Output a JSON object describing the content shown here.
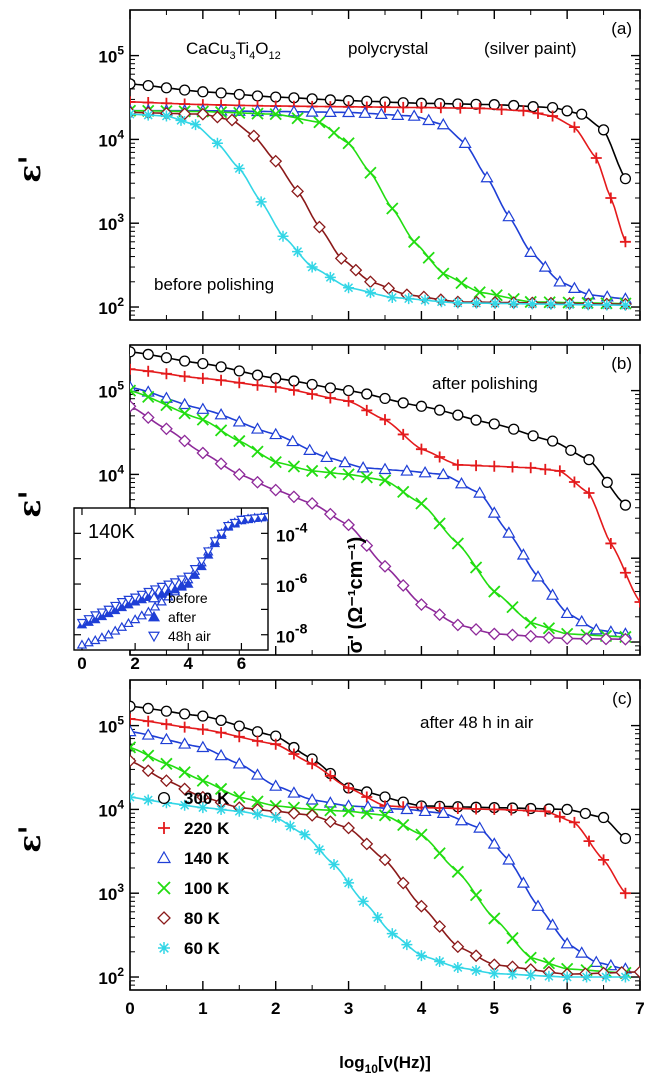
{
  "chart_data": [
    {
      "type": "line",
      "panel": "(a)",
      "ylabel": "ε'",
      "yscale": "log",
      "ylim": [
        70,
        350000
      ],
      "xlim": [
        0,
        7
      ],
      "yticks": [
        {
          "v": 100,
          "m": "2"
        },
        {
          "v": 1000,
          "m": "3"
        },
        {
          "v": 10000,
          "m": "4"
        },
        {
          "v": 100000,
          "m": "5"
        }
      ],
      "annotations": [
        {
          "id": "compound",
          "base": "CaCu",
          "s1": "3",
          "m1": "Ti",
          "s2": "4",
          "m2": "O",
          "s3": "12"
        },
        {
          "id": "polycrystal",
          "text": "polycrystal"
        },
        {
          "id": "contact",
          "text": "(silver paint)"
        },
        {
          "id": "state",
          "text": "before polishing"
        }
      ],
      "series": [
        {
          "key": "300K",
          "x": [
            0,
            1,
            2,
            3,
            4,
            5,
            5.8,
            6.2,
            6.5,
            6.8
          ],
          "y": [
            46000,
            37000,
            32000,
            29000,
            27000,
            26000,
            24000,
            20000,
            13000,
            3400
          ]
        },
        {
          "key": "220K",
          "x": [
            0,
            1,
            2,
            3,
            4,
            4.8,
            5.4,
            5.8,
            6.1,
            6.4,
            6.6,
            6.8
          ],
          "y": [
            28000,
            26000,
            25000,
            24500,
            24000,
            23500,
            22000,
            19000,
            14000,
            6000,
            2000,
            600
          ]
        },
        {
          "key": "140K",
          "x": [
            0,
            1,
            2,
            3,
            3.9,
            4.3,
            4.6,
            4.9,
            5.2,
            5.5,
            5.9,
            6.3,
            6.8
          ],
          "y": [
            22000,
            22000,
            21500,
            21000,
            19000,
            15000,
            9000,
            3500,
            1200,
            450,
            200,
            140,
            125
          ]
        },
        {
          "key": "100K",
          "x": [
            0,
            1,
            2,
            2.6,
            3.0,
            3.3,
            3.6,
            3.9,
            4.3,
            4.8,
            5.5,
            6.8
          ],
          "y": [
            22000,
            21500,
            20000,
            16000,
            9000,
            4000,
            1500,
            600,
            250,
            150,
            115,
            110
          ]
        },
        {
          "key": "80K",
          "x": [
            0,
            1,
            1.4,
            1.7,
            2.0,
            2.3,
            2.6,
            2.9,
            3.3,
            3.8,
            4.5,
            6.8
          ],
          "y": [
            21000,
            20000,
            17000,
            11000,
            5500,
            2400,
            900,
            380,
            200,
            140,
            115,
            108
          ]
        },
        {
          "key": "60K",
          "x": [
            0,
            0.5,
            0.9,
            1.2,
            1.5,
            1.8,
            2.1,
            2.5,
            3.0,
            3.6,
            4.5,
            6.8
          ],
          "y": [
            20000,
            19000,
            15000,
            9000,
            4500,
            1800,
            700,
            300,
            170,
            130,
            112,
            105
          ]
        }
      ]
    },
    {
      "type": "line",
      "panel": "(b)",
      "ylabel": "ε'",
      "yscale": "log",
      "ylim": [
        70,
        350000
      ],
      "xlim": [
        0,
        7
      ],
      "yticks": [
        {
          "v": 10000,
          "m": "4"
        },
        {
          "v": 100000,
          "m": "5"
        }
      ],
      "annotations": [
        {
          "id": "state",
          "text": "after polishing"
        }
      ],
      "series": [
        {
          "key": "300K",
          "x": [
            0,
            1,
            2,
            3,
            4,
            5,
            5.8,
            6.3,
            6.8
          ],
          "y": [
            290000,
            210000,
            140000,
            100000,
            65000,
            40000,
            25000,
            15000,
            4300
          ]
        },
        {
          "key": "220K",
          "x": [
            0,
            1,
            2,
            3,
            3.5,
            4.0,
            4.5,
            5.0,
            5.5,
            5.9,
            6.3,
            6.6,
            7.0
          ],
          "y": [
            180000,
            140000,
            110000,
            75000,
            45000,
            20000,
            13000,
            12500,
            12000,
            11000,
            6000,
            1500,
            300
          ]
        },
        {
          "key": "140K",
          "x": [
            0,
            1,
            2,
            2.7,
            3.2,
            3.8,
            4.3,
            4.8,
            5.2,
            5.6,
            6.0,
            6.4,
            6.8
          ],
          "y": [
            110000,
            60000,
            30000,
            16000,
            12000,
            11000,
            10000,
            6000,
            2000,
            600,
            220,
            140,
            125
          ]
        },
        {
          "key": "100K",
          "x": [
            0,
            1,
            1.5,
            2.0,
            2.5,
            3.0,
            3.5,
            4.0,
            4.5,
            5.0,
            5.5,
            6.0,
            6.8
          ],
          "y": [
            100000,
            45000,
            25000,
            14000,
            11000,
            10000,
            8500,
            4500,
            1500,
            400,
            170,
            125,
            115
          ]
        },
        {
          "key": "80K",
          "x": [
            0,
            0.5,
            1.0,
            1.5,
            2.0,
            2.5,
            3.0,
            3.5,
            4.0,
            4.5,
            5.0,
            6.0,
            6.8
          ],
          "y": [
            65000,
            35000,
            18000,
            10000,
            6500,
            4500,
            2500,
            800,
            280,
            160,
            125,
            110,
            108
          ]
        }
      ]
    },
    {
      "type": "line",
      "panel": "(c)",
      "ylabel": "ε'",
      "yscale": "log",
      "ylim": [
        70,
        350000
      ],
      "xlim": [
        0,
        7
      ],
      "xlabel_base": "log",
      "xlabel_sub": "10",
      "xlabel_tail": "[ν(Hz)]",
      "yticks": [
        {
          "v": 100,
          "m": "2"
        },
        {
          "v": 1000,
          "m": "3"
        },
        {
          "v": 10000,
          "m": "4"
        },
        {
          "v": 100000,
          "m": "5"
        }
      ],
      "xticks": [
        "0",
        "1",
        "2",
        "3",
        "4",
        "5",
        "6",
        "7"
      ],
      "annotations": [
        {
          "id": "state",
          "text": "after 48 h in air"
        }
      ],
      "series": [
        {
          "key": "300K",
          "x": [
            0,
            1,
            2,
            2.5,
            3.0,
            4,
            5,
            6.0,
            6.5,
            6.8
          ],
          "y": [
            170000,
            130000,
            75000,
            40000,
            18000,
            11000,
            10500,
            10000,
            8000,
            4500
          ]
        },
        {
          "key": "220K",
          "x": [
            0,
            1,
            2,
            2.5,
            3.0,
            3.5,
            4,
            5,
            5.7,
            6.1,
            6.5,
            6.8
          ],
          "y": [
            120000,
            90000,
            60000,
            35000,
            18000,
            11000,
            10500,
            10000,
            9500,
            7000,
            2500,
            1000
          ]
        },
        {
          "key": "140K",
          "x": [
            0,
            1,
            1.5,
            2,
            2.5,
            3,
            3.8,
            4.3,
            4.8,
            5.2,
            5.6,
            6.0,
            6.4,
            6.8
          ],
          "y": [
            85000,
            55000,
            35000,
            19000,
            13000,
            11000,
            10000,
            9000,
            6000,
            2500,
            700,
            250,
            150,
            125
          ]
        },
        {
          "key": "100K",
          "x": [
            0,
            0.5,
            1,
            1.5,
            2,
            2.5,
            3,
            3.5,
            4.0,
            4.5,
            5.0,
            5.5,
            6.0,
            6.8
          ],
          "y": [
            55000,
            35000,
            22000,
            14000,
            11000,
            10000,
            9500,
            8500,
            5000,
            1800,
            500,
            170,
            125,
            112
          ]
        },
        {
          "key": "80K",
          "x": [
            0,
            0.5,
            1,
            1.5,
            2,
            2.5,
            3.0,
            3.5,
            4.0,
            4.5,
            5.0,
            6.0,
            7.0
          ],
          "y": [
            38000,
            22000,
            14000,
            10500,
            9500,
            8500,
            6000,
            2500,
            700,
            230,
            140,
            108,
            115
          ]
        },
        {
          "key": "60K",
          "x": [
            0,
            0.5,
            1,
            1.5,
            2,
            2.4,
            2.8,
            3.2,
            3.6,
            4.0,
            4.5,
            5.0,
            6.0,
            6.8
          ],
          "y": [
            14000,
            12000,
            10500,
            9500,
            8000,
            5000,
            2200,
            800,
            330,
            180,
            130,
            110,
            100,
            100
          ]
        }
      ]
    },
    {
      "type": "line",
      "panel": "inset",
      "title": "140K",
      "yscale": "log",
      "ylim": [
        2.5e-09,
        0.001
      ],
      "xlim": [
        -0.3,
        7
      ],
      "xticks": [
        "0",
        "2",
        "4",
        "6"
      ],
      "yticks_right": [
        {
          "v": 1e-08,
          "m": "-8"
        },
        {
          "v": 1e-06,
          "m": "-6"
        },
        {
          "v": 0.0001,
          "m": "-4"
        }
      ],
      "ylabel_right": "σ' (Ω⁻¹cm⁻¹)",
      "legend": [
        {
          "key": "before",
          "label": "before"
        },
        {
          "key": "after",
          "label": "after"
        },
        {
          "key": "48h",
          "label": "48h air"
        }
      ],
      "series": [
        {
          "key": "before",
          "x": [
            0,
            0.5,
            1,
            1.5,
            2,
            2.5,
            3,
            3.5,
            4,
            4.5,
            5,
            5.5,
            6,
            6.5,
            7
          ],
          "y": [
            4e-09,
            6e-09,
            1e-08,
            2e-08,
            4e-08,
            8e-08,
            2e-07,
            5e-07,
            1.5e-06,
            7e-06,
            5e-05,
            0.0002,
            0.00035,
            0.0004,
            0.00045
          ]
        },
        {
          "key": "after",
          "x": [
            0,
            0.5,
            1,
            1.5,
            2,
            2.5,
            3,
            3.5,
            4,
            4.5,
            5,
            5.5,
            6,
            6.5,
            7
          ],
          "y": [
            2.5e-08,
            4e-08,
            7e-08,
            1.2e-07,
            2e-07,
            3e-07,
            4e-07,
            6e-07,
            1e-06,
            5e-06,
            4e-05,
            0.00018,
            0.00032,
            0.0004,
            0.00045
          ]
        },
        {
          "key": "48h",
          "x": [
            0,
            0.5,
            1,
            1.5,
            2,
            2.5,
            3,
            3.5,
            4,
            4.5,
            5,
            5.5,
            6,
            6.5,
            7
          ],
          "y": [
            3e-08,
            6e-08,
            1e-07,
            2e-07,
            3e-07,
            5e-07,
            8e-07,
            1.2e-06,
            2e-06,
            8e-06,
            5e-05,
            0.0002,
            0.00035,
            0.0004,
            0.00045
          ]
        }
      ]
    }
  ],
  "legend": [
    {
      "key": "300K",
      "label": "300 K"
    },
    {
      "key": "220K",
      "label": "220 K"
    },
    {
      "key": "140K",
      "label": "140 K"
    },
    {
      "key": "100K",
      "label": "100 K"
    },
    {
      "key": "80K",
      "label": "80 K"
    },
    {
      "key": "60K",
      "label": "60 K"
    }
  ],
  "series_style": {
    "300K": {
      "color": "#000000",
      "marker": "circle"
    },
    "220K": {
      "color": "#e41a1c",
      "marker": "plus"
    },
    "140K": {
      "color": "#1f3fd6",
      "marker": "triangle-up"
    },
    "100K": {
      "color": "#22dd11",
      "marker": "x"
    },
    "80K": {
      "color": "#8b1a1a",
      "marker": "diamond"
    },
    "60K": {
      "color": "#33d6e6",
      "marker": "asterisk"
    },
    "before": {
      "color": "#1f3fd6",
      "marker": "triangle-up"
    },
    "after": {
      "color": "#1f3fd6",
      "marker": "triangle-up-filled"
    },
    "48h": {
      "color": "#1f3fd6",
      "marker": "triangle-down"
    }
  },
  "b_series_80K_color": "#8e2a9a"
}
